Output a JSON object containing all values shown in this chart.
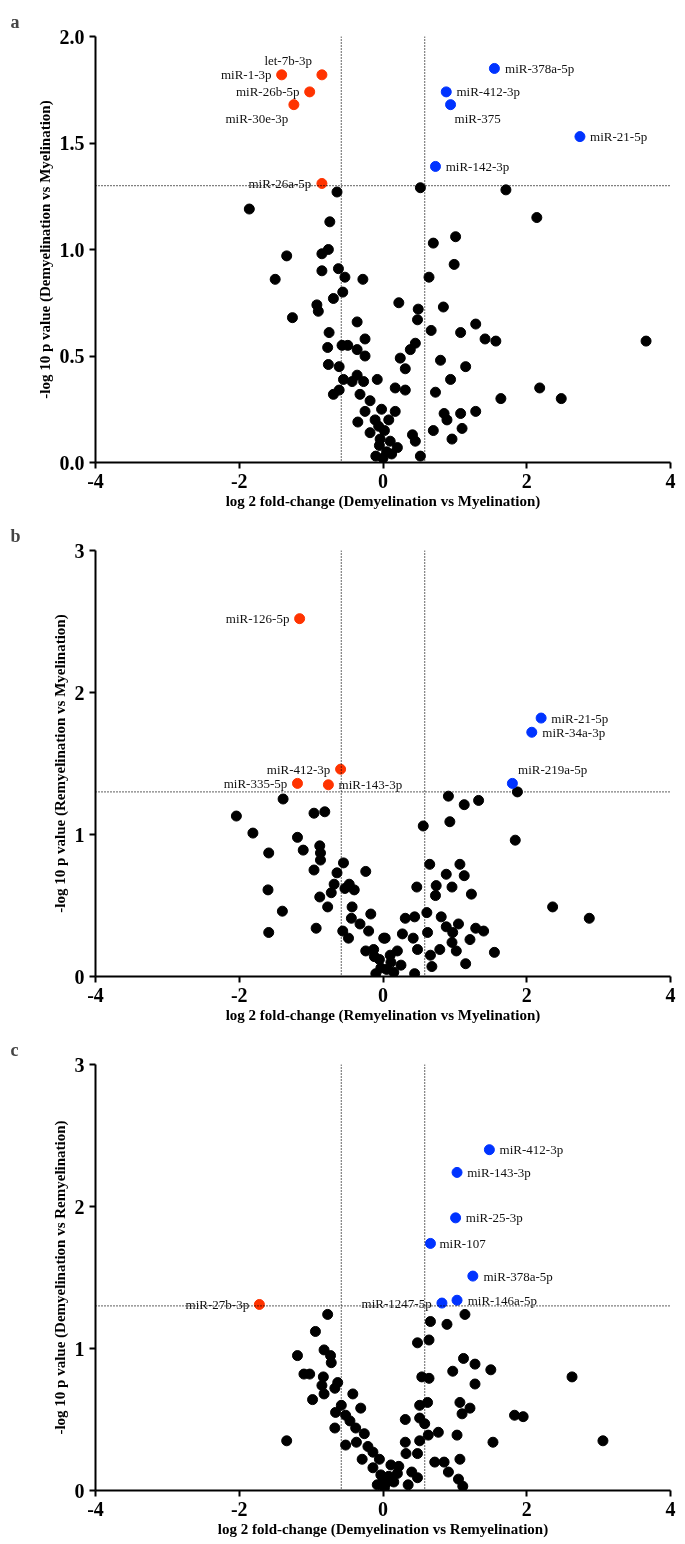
{
  "chart_data": [
    {
      "type": "scatter",
      "title": "a",
      "xlabel": "log 2 fold-change (Demyelination vs Myelination)",
      "ylabel": "-log 10 p value (Demyelination vs Myelination)",
      "xlim": [
        -4,
        4
      ],
      "xticks": [
        -4,
        -2,
        0,
        2,
        4
      ],
      "ylim": [
        0,
        2
      ],
      "yticks": [
        {
          "value": 0,
          "label": "0.0"
        },
        {
          "value": 0.5,
          "label": "0.5"
        },
        {
          "value": 1,
          "label": "1.0"
        },
        {
          "value": 1.5,
          "label": "1.5"
        },
        {
          "value": 2,
          "label": "2.0"
        }
      ],
      "grid": false,
      "marker": "circle",
      "series": [
        {
          "color": "#000000",
          "x": [
            -1.86,
            -0.64,
            -0.74,
            -1.34,
            -1.5,
            -0.85,
            -0.76,
            -0.85,
            -0.62,
            -0.53,
            -0.28,
            -0.56,
            -0.69,
            -0.92,
            -0.9,
            -1.26,
            -0.36,
            -0.75,
            -0.77,
            -0.57,
            -0.49,
            -0.25,
            -0.36,
            -0.25,
            -0.76,
            -0.61,
            -0.36,
            -0.55,
            -0.08,
            -0.43,
            -0.27,
            -0.69,
            -0.61,
            -0.32,
            -0.18,
            -0.25,
            -0.35,
            -0.11,
            -0.06,
            -0.18,
            -0.04,
            0.52,
            1.71,
            2.14,
            0.7,
            1.01,
            0.99,
            0.64,
            0.22,
            0.49,
            0.48,
            0.84,
            0.67,
            1.08,
            1.29,
            1.42,
            1.57,
            3.66,
            0.45,
            0.38,
            0.24,
            0.8,
            0.31,
            1.15,
            0.94,
            0.17,
            0.31,
            0.73,
            2.18,
            2.48,
            1.64,
            1.29,
            0.85,
            1.08,
            0.89,
            1.1,
            0.7,
            0.96,
            0.17,
            0.41,
            0.45,
            0.52,
            0.0,
            0.05,
            -0.05,
            0.1,
            0.02,
            0.12,
            -0.1,
            0.2,
            0.08,
            -0.02
          ],
          "values": [
            1.19,
            1.27,
            1.13,
            0.97,
            0.86,
            0.98,
            1.0,
            0.9,
            0.91,
            0.87,
            0.86,
            0.8,
            0.77,
            0.74,
            0.71,
            0.68,
            0.66,
            0.61,
            0.54,
            0.55,
            0.55,
            0.58,
            0.53,
            0.5,
            0.46,
            0.45,
            0.41,
            0.39,
            0.39,
            0.38,
            0.38,
            0.32,
            0.34,
            0.32,
            0.29,
            0.24,
            0.19,
            0.2,
            0.17,
            0.14,
            0.11,
            1.29,
            1.28,
            1.15,
            1.03,
            1.06,
            0.93,
            0.87,
            0.75,
            0.72,
            0.67,
            0.73,
            0.62,
            0.61,
            0.65,
            0.58,
            0.57,
            0.57,
            0.56,
            0.53,
            0.49,
            0.48,
            0.44,
            0.45,
            0.39,
            0.35,
            0.34,
            0.33,
            0.35,
            0.3,
            0.3,
            0.24,
            0.23,
            0.23,
            0.2,
            0.16,
            0.15,
            0.11,
            0.24,
            0.13,
            0.1,
            0.03,
            0.02,
            0.05,
            0.08,
            0.1,
            0.15,
            0.04,
            0.03,
            0.07,
            0.2,
            0.25
          ]
        },
        {
          "color": "#ff3300",
          "x": [
            -1.41,
            -0.85,
            -1.02,
            -1.24,
            -0.85
          ],
          "values": [
            1.82,
            1.82,
            1.74,
            1.68,
            1.31
          ]
        },
        {
          "color": "#0033ff",
          "x": [
            1.55,
            0.88,
            0.94,
            2.74,
            0.73
          ],
          "values": [
            1.85,
            1.74,
            1.68,
            1.53,
            1.39
          ]
        }
      ],
      "ref_lines": [
        {
          "axis": "x",
          "value": -0.58,
          "line_style": "dotted"
        },
        {
          "axis": "x",
          "value": 0.58,
          "line_style": "dotted"
        },
        {
          "axis": "y",
          "value": 1.3,
          "line_style": "dotted"
        }
      ],
      "annotations": [
        {
          "text": "miR-1-3p",
          "x": -1.41,
          "y": 1.82
        },
        {
          "text": "let-7b-3p",
          "x": -0.85,
          "y": 1.82
        },
        {
          "text": "miR-26b-5p",
          "x": -1.02,
          "y": 1.74
        },
        {
          "text": "miR-30e-3p",
          "x": -1.24,
          "y": 1.68
        },
        {
          "text": "miR-26a-5p",
          "x": -0.85,
          "y": 1.31
        },
        {
          "text": "miR-378a-5p",
          "x": 1.55,
          "y": 1.85
        },
        {
          "text": "miR-412-3p",
          "x": 0.88,
          "y": 1.74
        },
        {
          "text": "miR-375",
          "x": 0.94,
          "y": 1.68
        },
        {
          "text": "miR-21-5p",
          "x": 2.74,
          "y": 1.53
        },
        {
          "text": "miR-142-3p",
          "x": 0.73,
          "y": 1.39
        }
      ]
    },
    {
      "type": "scatter",
      "title": "b",
      "xlabel": "log 2 fold-change (Remyelination vs Myelination)",
      "ylabel": "-log 10 p value (Remyelination vs Myelination)",
      "xlim": [
        -4,
        4
      ],
      "xticks": [
        -4,
        -2,
        0,
        2,
        4
      ],
      "ylim": [
        0,
        3
      ],
      "yticks": [
        0,
        1,
        2,
        3
      ],
      "grid": false,
      "marker": "circle",
      "series": [
        {
          "color": "#000000",
          "x": [
            -1.39,
            -2.04,
            -1.81,
            -1.59,
            -1.6,
            -1.4,
            -1.59,
            -1.19,
            -1.11,
            -0.96,
            -0.81,
            -0.88,
            -0.87,
            -0.87,
            -0.96,
            -0.55,
            -0.64,
            -0.24,
            -0.68,
            -0.72,
            -0.88,
            -0.77,
            -0.93,
            -0.47,
            -0.4,
            -0.53,
            -0.43,
            -0.17,
            -0.44,
            -0.32,
            -0.56,
            -0.48,
            -0.2,
            0.01,
            -0.24,
            -0.12,
            -0.03,
            0.91,
            1.13,
            1.33,
            1.87,
            0.56,
            0.93,
            1.84,
            0.65,
            1.07,
            1.13,
            0.88,
            0.96,
            0.74,
            0.47,
            0.73,
            1.23,
            2.36,
            2.87,
            0.61,
            0.31,
            0.44,
            0.81,
            1.05,
            1.29,
            1.4,
            0.88,
            0.97,
            0.62,
            0.27,
            0.03,
            0.42,
            1.21,
            0.96,
            0.79,
            1.02,
            1.55,
            0.48,
            0.66,
            0.2,
            1.15,
            0.68,
            0.44,
            0.11,
            -0.13,
            0.05,
            0.15,
            -0.05,
            0.1,
            0.25,
            -0.1
          ],
          "values": [
            1.25,
            1.13,
            1.01,
            0.87,
            0.61,
            0.46,
            0.31,
            0.98,
            0.89,
            1.15,
            1.16,
            0.92,
            0.87,
            0.82,
            0.75,
            0.8,
            0.73,
            0.74,
            0.65,
            0.59,
            0.56,
            0.49,
            0.34,
            0.65,
            0.61,
            0.62,
            0.49,
            0.44,
            0.41,
            0.37,
            0.32,
            0.27,
            0.32,
            0.27,
            0.18,
            0.14,
            0.06,
            1.27,
            1.21,
            1.24,
            1.3,
            1.06,
            1.09,
            0.96,
            0.79,
            0.79,
            0.71,
            0.72,
            0.63,
            0.64,
            0.63,
            0.57,
            0.58,
            0.49,
            0.41,
            0.45,
            0.41,
            0.42,
            0.42,
            0.37,
            0.34,
            0.32,
            0.35,
            0.31,
            0.31,
            0.3,
            0.27,
            0.27,
            0.26,
            0.24,
            0.19,
            0.18,
            0.17,
            0.19,
            0.15,
            0.18,
            0.09,
            0.07,
            0.02,
            0.1,
            0.19,
            0.05,
            0.03,
            0.12,
            0.15,
            0.08,
            0.02
          ]
        },
        {
          "color": "#ff3300",
          "x": [
            -1.16,
            -0.59,
            -1.19,
            -0.76
          ],
          "values": [
            2.52,
            1.46,
            1.36,
            1.35
          ]
        },
        {
          "color": "#0033ff",
          "x": [
            2.2,
            2.07,
            1.8
          ],
          "values": [
            1.82,
            1.72,
            1.36
          ]
        }
      ],
      "ref_lines": [
        {
          "axis": "x",
          "value": -0.58,
          "line_style": "dotted"
        },
        {
          "axis": "x",
          "value": 0.58,
          "line_style": "dotted"
        },
        {
          "axis": "y",
          "value": 1.3,
          "line_style": "dotted"
        }
      ],
      "annotations": [
        {
          "text": "miR-126-5p",
          "x": -1.16,
          "y": 2.52
        },
        {
          "text": "miR-412-3p",
          "x": -0.59,
          "y": 1.46
        },
        {
          "text": "miR-335-5p",
          "x": -1.19,
          "y": 1.36
        },
        {
          "text": "miR-143-3p",
          "x": -0.76,
          "y": 1.35
        },
        {
          "text": "miR-21-5p",
          "x": 2.2,
          "y": 1.82
        },
        {
          "text": "miR-34a-3p",
          "x": 2.07,
          "y": 1.72
        },
        {
          "text": "miR-219a-5p",
          "x": 1.8,
          "y": 1.36
        }
      ]
    },
    {
      "type": "scatter",
      "title": "c",
      "xlabel": "log 2 fold-change (Demyelination vs Remyelination)",
      "ylabel": "-log 10 p value (Demyelination vs Remyelination)",
      "xlim": [
        -4,
        4
      ],
      "xticks": [
        -4,
        -2,
        0,
        2,
        4
      ],
      "ylim": [
        0,
        3
      ],
      "yticks": [
        0,
        1,
        2,
        3
      ],
      "grid": false,
      "marker": "circle",
      "series": [
        {
          "color": "#000000",
          "x": [
            -0.77,
            -0.94,
            -1.19,
            -0.82,
            -0.73,
            -0.72,
            -1.1,
            -1.02,
            -0.83,
            -0.85,
            -0.63,
            -0.67,
            -0.98,
            -0.82,
            -0.42,
            -0.58,
            -0.31,
            -0.66,
            -0.52,
            -0.46,
            -0.67,
            -0.38,
            -1.34,
            -0.26,
            -0.52,
            -0.37,
            -0.21,
            -0.29,
            -0.14,
            -0.05,
            -0.14,
            -0.03,
            0.0,
            1.14,
            0.66,
            0.89,
            0.48,
            0.64,
            1.12,
            1.28,
            1.5,
            0.97,
            2.63,
            0.54,
            0.64,
            1.28,
            1.07,
            1.21,
            0.62,
            0.51,
            1.1,
            1.83,
            1.95,
            0.31,
            0.51,
            0.58,
            0.77,
            0.63,
            1.03,
            3.06,
            1.53,
            0.31,
            0.51,
            0.32,
            0.48,
            0.72,
            0.85,
            1.07,
            0.11,
            0.22,
            0.91,
            0.4,
            0.48,
            1.05,
            0.35,
            1.11,
            0.04,
            0.08,
            0.15,
            -0.08,
            0.2,
            0.02
          ],
          "values": [
            1.24,
            1.12,
            0.95,
            0.99,
            0.95,
            0.9,
            0.82,
            0.82,
            0.8,
            0.74,
            0.76,
            0.72,
            0.64,
            0.68,
            0.68,
            0.6,
            0.58,
            0.55,
            0.53,
            0.49,
            0.44,
            0.44,
            0.35,
            0.4,
            0.32,
            0.34,
            0.31,
            0.22,
            0.27,
            0.22,
            0.16,
            0.11,
            0.07,
            1.24,
            1.19,
            1.17,
            1.04,
            1.06,
            0.93,
            0.89,
            0.85,
            0.84,
            0.8,
            0.8,
            0.79,
            0.75,
            0.62,
            0.58,
            0.62,
            0.6,
            0.54,
            0.53,
            0.52,
            0.5,
            0.51,
            0.47,
            0.41,
            0.39,
            0.39,
            0.35,
            0.34,
            0.34,
            0.35,
            0.26,
            0.26,
            0.2,
            0.2,
            0.22,
            0.18,
            0.17,
            0.13,
            0.13,
            0.09,
            0.08,
            0.04,
            0.03,
            0.05,
            0.1,
            0.06,
            0.04,
            0.12,
            0.02
          ]
        },
        {
          "color": "#ff3300",
          "x": [
            -1.72
          ],
          "values": [
            1.31
          ]
        },
        {
          "color": "#0033ff",
          "x": [
            1.48,
            1.03,
            1.01,
            0.66,
            1.25,
            1.03,
            0.82
          ],
          "values": [
            2.4,
            2.24,
            1.92,
            1.74,
            1.51,
            1.34,
            1.32
          ]
        }
      ],
      "ref_lines": [
        {
          "axis": "x",
          "value": -0.58,
          "line_style": "dotted"
        },
        {
          "axis": "x",
          "value": 0.58,
          "line_style": "dotted"
        },
        {
          "axis": "y",
          "value": 1.3,
          "line_style": "dotted"
        }
      ],
      "annotations": [
        {
          "text": "miR-27b-3p",
          "x": -1.72,
          "y": 1.31
        },
        {
          "text": "miR-412-3p",
          "x": 1.48,
          "y": 2.4
        },
        {
          "text": "miR-143-3p",
          "x": 1.03,
          "y": 2.24
        },
        {
          "text": "miR-25-3p",
          "x": 1.01,
          "y": 1.92
        },
        {
          "text": "miR-107",
          "x": 0.66,
          "y": 1.74
        },
        {
          "text": "miR-378a-5p",
          "x": 1.25,
          "y": 1.51
        },
        {
          "text": "miR-146a-5p",
          "x": 1.03,
          "y": 1.34
        },
        {
          "text": "miR-1247-5p",
          "x": 0.82,
          "y": 1.32
        }
      ]
    }
  ]
}
